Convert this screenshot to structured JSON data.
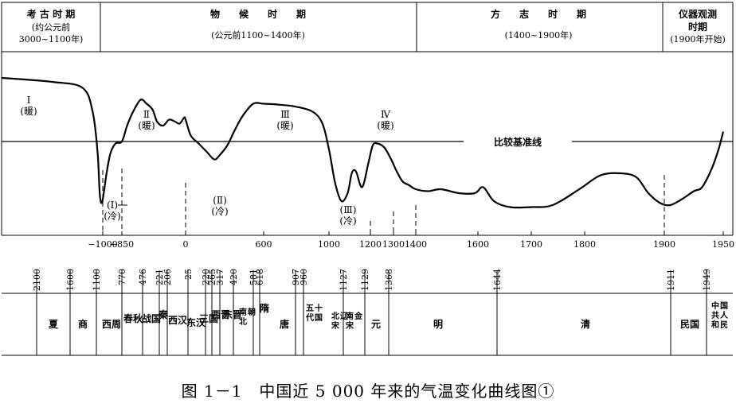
{
  "header": {
    "periods": [
      {
        "title": "考 古 时 期",
        "subtitle": "(约公元前",
        "range": "3000~1100年)"
      },
      {
        "title": "物　　候　　时　　期",
        "range": "(公元前1100~1400年)"
      },
      {
        "title": "方　　志　　时　　期",
        "range": "(1400~1900年)"
      },
      {
        "title": "仪器观测",
        "subtitle": "时期",
        "range": "(1900年开始)"
      }
    ]
  },
  "chart_data": {
    "type": "line",
    "title": "中国近5000年来的气温变化曲线图",
    "baseline_label": "比较基准线",
    "x_tick_labels": [
      "−1000",
      "−850",
      "0",
      "600",
      "1000",
      "1200",
      "1300",
      "1400",
      "1600",
      "1700",
      "1800",
      "1900",
      "1950"
    ],
    "x_ticks": [
      -1000,
      -850,
      0,
      600,
      1000,
      1200,
      1300,
      1400,
      1600,
      1700,
      1800,
      1900,
      1950
    ],
    "series": [
      {
        "x": [
          -3000,
          -2000,
          -1400,
          -1200,
          -1100,
          -1060,
          -1020,
          -990,
          -970,
          -940,
          -900,
          -850,
          -780,
          -700,
          -600,
          -520,
          -440,
          -380,
          -300,
          -220,
          -140,
          -80,
          -20,
          0,
          40,
          100,
          160,
          220,
          260,
          320,
          380,
          440,
          520,
          600,
          700,
          800,
          900,
          960,
          1000,
          1030,
          1060,
          1090,
          1110,
          1130,
          1160,
          1190,
          1210,
          1230,
          1260,
          1290,
          1310,
          1340,
          1370,
          1400,
          1440,
          1480,
          1540,
          1590,
          1610,
          1630,
          1660,
          1700,
          1740,
          1790,
          1820,
          1845,
          1865,
          1880,
          1895,
          1905,
          1915,
          1925,
          1932,
          1940,
          1946,
          1952
        ],
        "y": [
          3.2,
          3.0,
          2.7,
          1.5,
          -0.6,
          -2.6,
          -3.1,
          -2.5,
          -1.6,
          -0.6,
          -0.1,
          0.0,
          0.8,
          1.5,
          2.1,
          1.9,
          1.6,
          1.0,
          0.8,
          1.1,
          1.0,
          0.9,
          1.2,
          1.1,
          0.3,
          -0.1,
          -0.5,
          -0.9,
          -0.7,
          -0.2,
          0.6,
          1.3,
          1.9,
          1.9,
          1.85,
          1.75,
          1.5,
          0.9,
          -0.4,
          -2.1,
          -3.0,
          -2.6,
          -1.6,
          -1.5,
          -2.3,
          -1.1,
          -0.2,
          -0.1,
          -0.3,
          -0.9,
          -1.4,
          -2.0,
          -2.2,
          -2.4,
          -2.5,
          -2.4,
          -2.6,
          -2.6,
          -2.3,
          -3.0,
          -3.3,
          -3.3,
          -3.2,
          -2.4,
          -1.7,
          -1.6,
          -1.8,
          -2.6,
          -3.1,
          -3.2,
          -2.9,
          -2.5,
          -2.3,
          -1.4,
          -0.4,
          0.5
        ]
      }
    ],
    "ylim": [
      -4,
      4
    ],
    "grid": false,
    "annotations": [
      {
        "label": "Ⅰ",
        "sub": "(暖)"
      },
      {
        "label": "Ⅱ",
        "sub": "(暖)"
      },
      {
        "label": "Ⅲ",
        "sub": "(暖)"
      },
      {
        "label": "Ⅳ",
        "sub": "(暖)"
      },
      {
        "label": "(Ⅰ)",
        "sub": "(冷)"
      },
      {
        "label": "(Ⅱ)",
        "sub": "(冷)"
      },
      {
        "label": "(Ⅲ)",
        "sub": "(冷)"
      }
    ]
  },
  "years_axis": [
    "2100",
    "1600",
    "1100",
    "770",
    "476",
    "221",
    "206",
    "25",
    "220",
    "265",
    "317",
    "420",
    "581",
    "618",
    "907",
    "960",
    "1127",
    "1129",
    "1368",
    "1644",
    "1911",
    "1949"
  ],
  "dynasties": [
    "夏",
    "商",
    "西周",
    "春秋",
    "战国",
    "秦",
    "西汉",
    "东汉",
    "三国",
    "西晋",
    "东晋",
    "南北朝",
    "隋",
    "唐",
    "五代十国",
    "北宋辽",
    "南宋金",
    "元",
    "明",
    "清",
    "民国",
    "中共和国人民"
  ],
  "caption": "图 1－1　中国近 5 000 年来的气温变化曲线图①"
}
